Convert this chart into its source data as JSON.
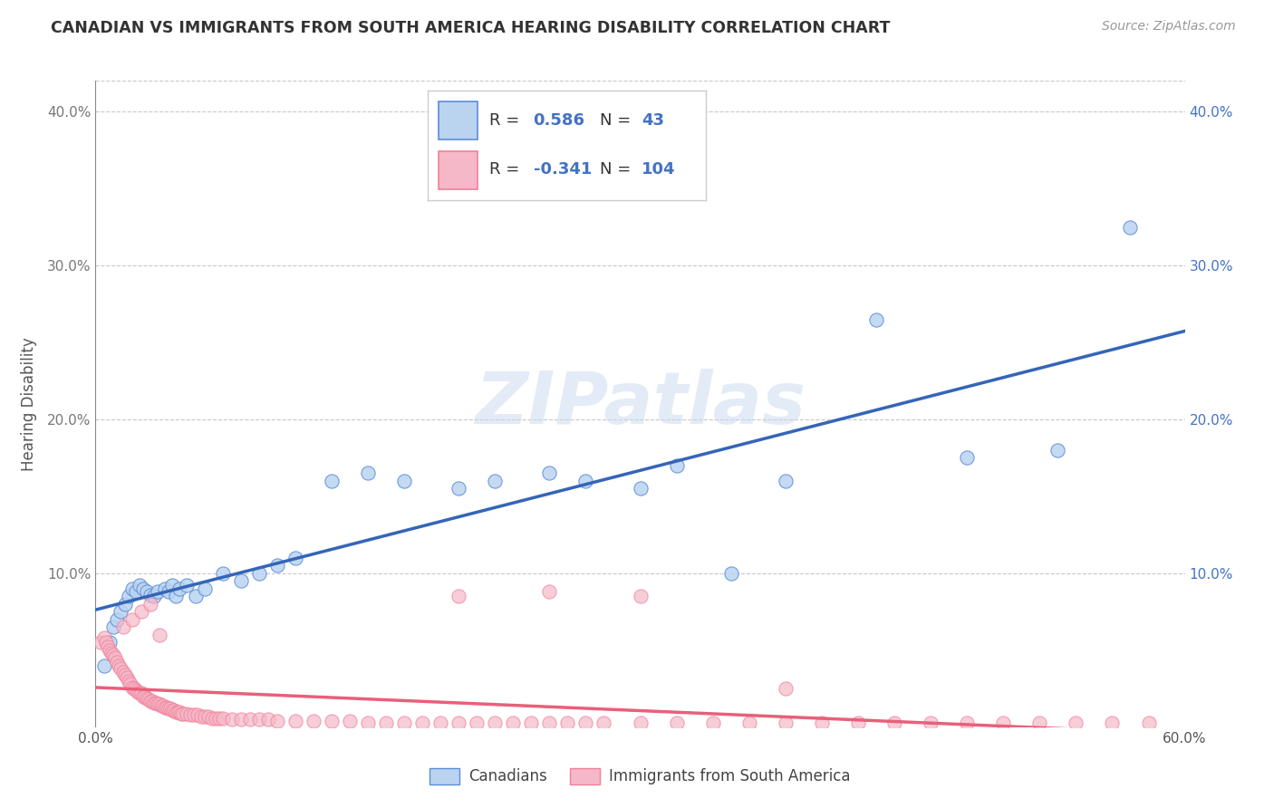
{
  "title": "CANADIAN VS IMMIGRANTS FROM SOUTH AMERICA HEARING DISABILITY CORRELATION CHART",
  "source": "Source: ZipAtlas.com",
  "ylabel": "Hearing Disability",
  "xlim": [
    0.0,
    0.6
  ],
  "ylim": [
    0.0,
    0.42
  ],
  "xticks": [
    0.0,
    0.1,
    0.2,
    0.3,
    0.4,
    0.5,
    0.6
  ],
  "yticks": [
    0.0,
    0.1,
    0.2,
    0.3,
    0.4
  ],
  "xticklabels": [
    "0.0%",
    "",
    "",
    "",
    "",
    "",
    "60.0%"
  ],
  "yticklabels": [
    "",
    "10.0%",
    "20.0%",
    "30.0%",
    "40.0%"
  ],
  "right_yticklabels": [
    "",
    "10.0%",
    "20.0%",
    "30.0%",
    "40.0%"
  ],
  "canadians_color": "#bad4f0",
  "immigrants_color": "#f5b8c8",
  "canadians_edge_color": "#5b8dd9",
  "immigrants_edge_color": "#f08098",
  "canadians_line_color": "#3465b8",
  "immigrants_line_color": "#e8607a",
  "R_canadian": 0.586,
  "N_canadian": 43,
  "R_immigrant": -0.341,
  "N_immigrant": 104,
  "legend_label_1": "Canadians",
  "legend_label_2": "Immigrants from South America",
  "watermark": "ZIPatlas",
  "canadians_x": [
    0.005,
    0.008,
    0.01,
    0.012,
    0.014,
    0.016,
    0.018,
    0.02,
    0.022,
    0.024,
    0.026,
    0.028,
    0.03,
    0.032,
    0.034,
    0.038,
    0.04,
    0.042,
    0.044,
    0.046,
    0.05,
    0.055,
    0.06,
    0.07,
    0.08,
    0.09,
    0.1,
    0.11,
    0.13,
    0.15,
    0.17,
    0.2,
    0.22,
    0.25,
    0.27,
    0.3,
    0.32,
    0.35,
    0.38,
    0.43,
    0.48,
    0.53,
    0.57
  ],
  "canadians_y": [
    0.04,
    0.055,
    0.065,
    0.07,
    0.075,
    0.08,
    0.085,
    0.09,
    0.088,
    0.092,
    0.09,
    0.088,
    0.086,
    0.085,
    0.088,
    0.09,
    0.088,
    0.092,
    0.085,
    0.09,
    0.092,
    0.085,
    0.09,
    0.1,
    0.095,
    0.1,
    0.105,
    0.11,
    0.16,
    0.165,
    0.16,
    0.155,
    0.16,
    0.165,
    0.16,
    0.155,
    0.17,
    0.1,
    0.16,
    0.265,
    0.175,
    0.18,
    0.325
  ],
  "immigrants_x": [
    0.003,
    0.005,
    0.006,
    0.007,
    0.008,
    0.009,
    0.01,
    0.011,
    0.012,
    0.013,
    0.014,
    0.015,
    0.016,
    0.017,
    0.018,
    0.019,
    0.02,
    0.021,
    0.022,
    0.023,
    0.024,
    0.025,
    0.026,
    0.027,
    0.028,
    0.029,
    0.03,
    0.031,
    0.032,
    0.033,
    0.034,
    0.035,
    0.036,
    0.037,
    0.038,
    0.039,
    0.04,
    0.041,
    0.042,
    0.043,
    0.044,
    0.045,
    0.046,
    0.047,
    0.048,
    0.05,
    0.052,
    0.054,
    0.056,
    0.058,
    0.06,
    0.062,
    0.064,
    0.066,
    0.068,
    0.07,
    0.075,
    0.08,
    0.085,
    0.09,
    0.095,
    0.1,
    0.11,
    0.12,
    0.13,
    0.14,
    0.15,
    0.16,
    0.17,
    0.18,
    0.19,
    0.2,
    0.21,
    0.22,
    0.23,
    0.24,
    0.25,
    0.26,
    0.27,
    0.28,
    0.3,
    0.32,
    0.34,
    0.36,
    0.38,
    0.4,
    0.42,
    0.44,
    0.46,
    0.48,
    0.5,
    0.52,
    0.54,
    0.56,
    0.58,
    0.015,
    0.02,
    0.025,
    0.03,
    0.035,
    0.2,
    0.25,
    0.3,
    0.38
  ],
  "immigrants_y": [
    0.055,
    0.058,
    0.055,
    0.052,
    0.05,
    0.048,
    0.047,
    0.045,
    0.042,
    0.04,
    0.038,
    0.036,
    0.034,
    0.032,
    0.03,
    0.028,
    0.026,
    0.025,
    0.024,
    0.023,
    0.022,
    0.022,
    0.02,
    0.02,
    0.019,
    0.018,
    0.017,
    0.017,
    0.016,
    0.016,
    0.015,
    0.015,
    0.014,
    0.014,
    0.013,
    0.013,
    0.012,
    0.012,
    0.011,
    0.011,
    0.01,
    0.01,
    0.01,
    0.009,
    0.009,
    0.009,
    0.008,
    0.008,
    0.008,
    0.007,
    0.007,
    0.007,
    0.006,
    0.006,
    0.006,
    0.006,
    0.005,
    0.005,
    0.005,
    0.005,
    0.005,
    0.004,
    0.004,
    0.004,
    0.004,
    0.004,
    0.003,
    0.003,
    0.003,
    0.003,
    0.003,
    0.003,
    0.003,
    0.003,
    0.003,
    0.003,
    0.003,
    0.003,
    0.003,
    0.003,
    0.003,
    0.003,
    0.003,
    0.003,
    0.003,
    0.003,
    0.003,
    0.003,
    0.003,
    0.003,
    0.003,
    0.003,
    0.003,
    0.003,
    0.003,
    0.065,
    0.07,
    0.075,
    0.08,
    0.06,
    0.085,
    0.088,
    0.085,
    0.025
  ]
}
